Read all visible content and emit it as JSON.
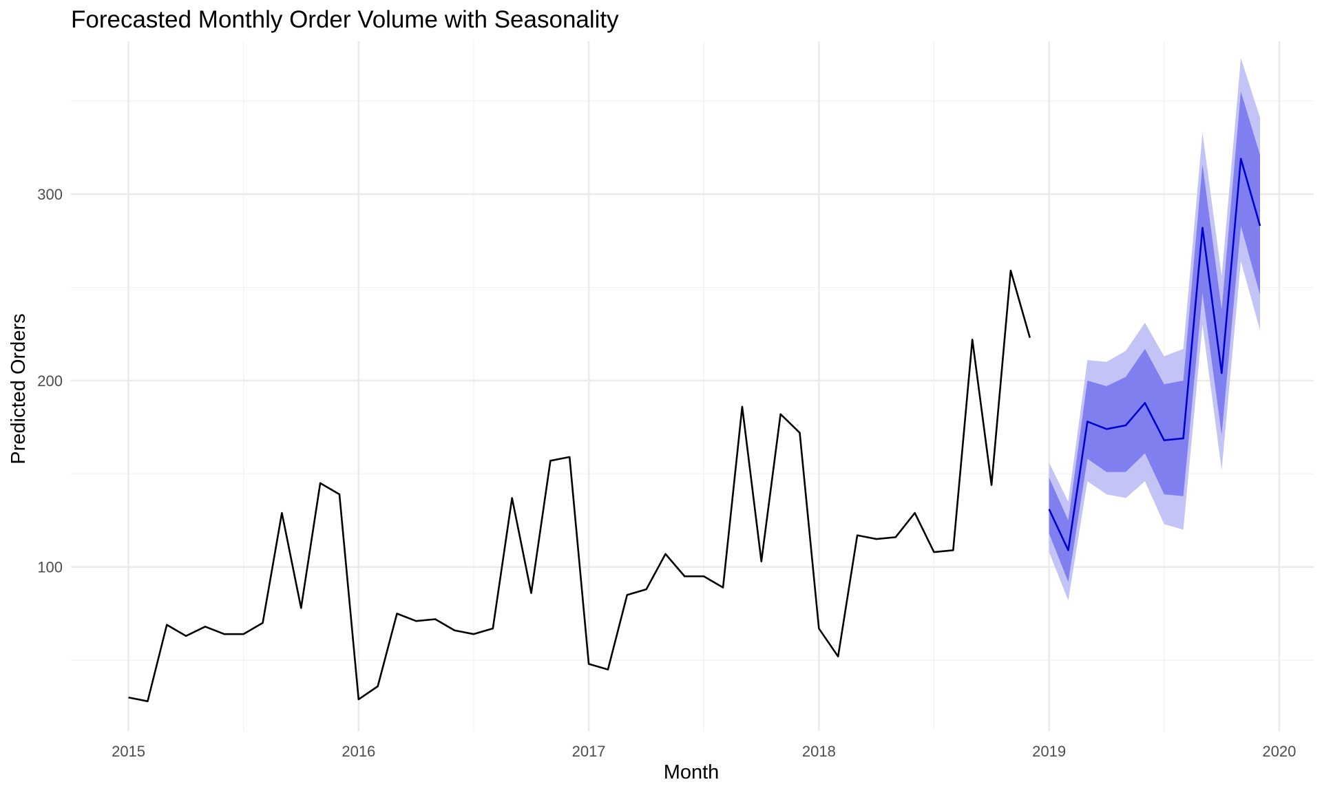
{
  "chart_data": {
    "type": "line",
    "title": "Forecasted Monthly Order Volume with Seasonality",
    "xlabel": "Month",
    "ylabel": "Predicted Orders",
    "xlim": [
      2014.75,
      2020.15
    ],
    "ylim": [
      12,
      382
    ],
    "x_ticks": [
      2015,
      2016,
      2017,
      2018,
      2019,
      2020
    ],
    "x_tick_labels": [
      "2015",
      "2016",
      "2017",
      "2018",
      "2019",
      "2020"
    ],
    "y_ticks": [
      100,
      200,
      300
    ],
    "y_tick_labels": [
      "100",
      "200",
      "300"
    ],
    "y_minor_ticks": [
      50,
      150,
      250,
      350
    ],
    "x_minor_ticks": [
      2015.5,
      2016.5,
      2017.5,
      2018.5,
      2019.5
    ],
    "grid": true,
    "legend": "none",
    "colors": {
      "history": "#000000",
      "forecast_mean": "#0000cc",
      "band_80": "#7f7ff0",
      "band_95": "#c3c3f5"
    },
    "series": [
      {
        "role": "history",
        "start": "2015-01",
        "values": [
          30,
          28,
          69,
          63,
          68,
          64,
          64,
          70,
          129,
          78,
          145,
          139,
          29,
          36,
          75,
          71,
          72,
          66,
          64,
          67,
          137,
          86,
          157,
          159,
          48,
          45,
          85,
          88,
          107,
          95,
          95,
          89,
          186,
          103,
          182,
          172,
          67,
          52,
          117,
          115,
          116,
          129,
          108,
          109,
          222,
          144,
          259,
          223
        ]
      },
      {
        "role": "forecast",
        "start": "2019-01",
        "values": [
          131,
          109,
          178,
          174,
          176,
          188,
          168,
          169,
          282,
          204,
          319,
          283
        ],
        "lower_80": [
          118,
          92,
          158,
          151,
          151,
          161,
          139,
          138,
          247,
          171,
          283,
          246
        ],
        "upper_80": [
          148,
          125,
          200,
          197,
          202,
          217,
          198,
          200,
          316,
          238,
          355,
          321
        ],
        "lower_95": [
          108,
          82,
          146,
          139,
          137,
          146,
          123,
          120,
          230,
          152,
          264,
          227
        ],
        "upper_95": [
          156,
          135,
          211,
          210,
          216,
          231,
          213,
          217,
          333,
          256,
          373,
          341
        ]
      }
    ]
  }
}
